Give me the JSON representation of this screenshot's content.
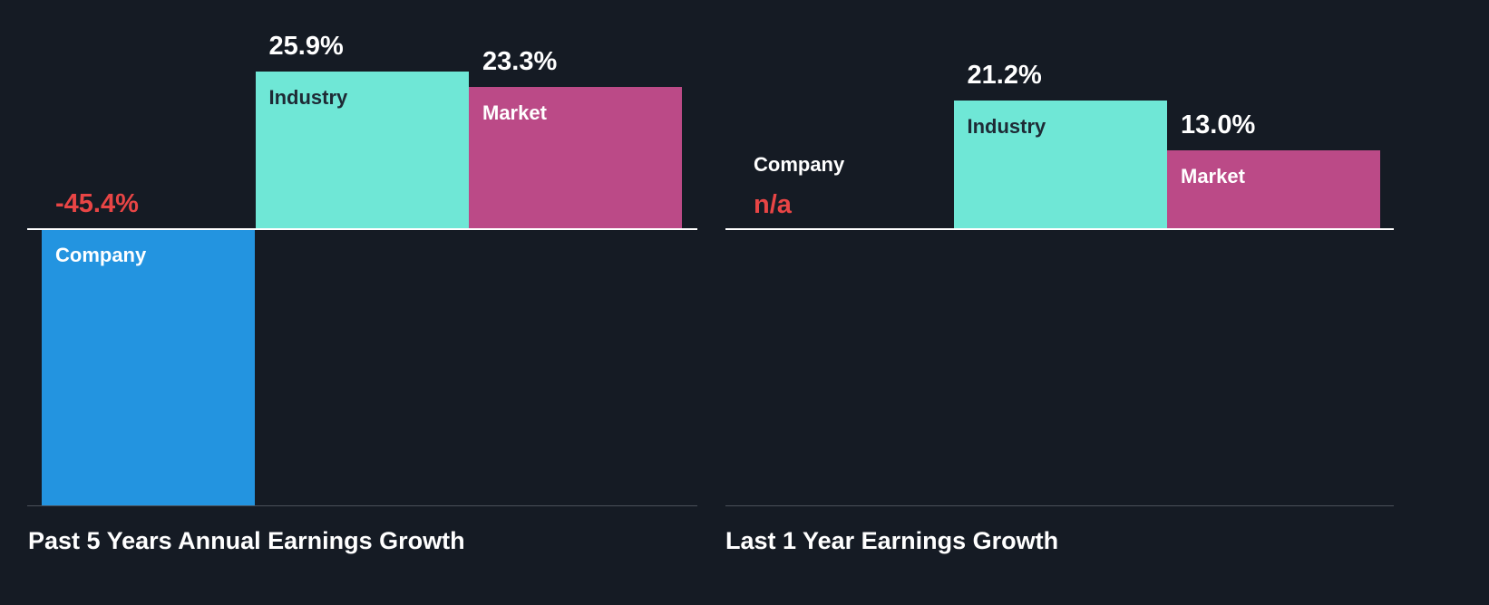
{
  "colors": {
    "background": "#151b24",
    "company": "#2394e0",
    "industry": "#6fe7d6",
    "market": "#bb4a87",
    "negative": "#e84545",
    "industry_label": "#1e2a35",
    "label": "#ffffff"
  },
  "chart_data": [
    {
      "type": "bar",
      "title": "Past 5 Years Annual Earnings Growth",
      "categories": [
        "Company",
        "Industry",
        "Market"
      ],
      "values": [
        -45.4,
        25.9,
        23.3
      ],
      "value_labels": [
        "-45.4%",
        "25.9%",
        "23.3%"
      ],
      "unit": "%",
      "ylim": [
        -45.4,
        25.9
      ]
    },
    {
      "type": "bar",
      "title": "Last 1 Year Earnings Growth",
      "categories": [
        "Company",
        "Industry",
        "Market"
      ],
      "values": [
        null,
        21.2,
        13.0
      ],
      "value_labels": [
        "n/a",
        "21.2%",
        "13.0%"
      ],
      "unit": "%",
      "ylim": [
        -45.4,
        25.9
      ]
    }
  ]
}
